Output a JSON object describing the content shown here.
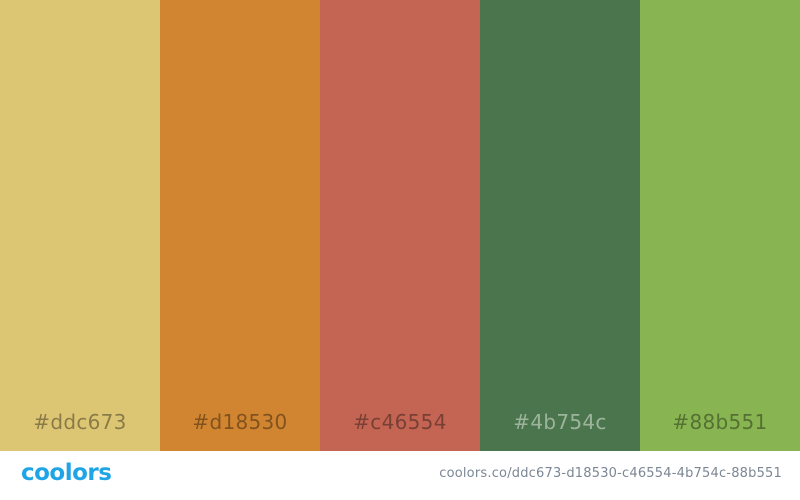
{
  "palette": {
    "swatches": [
      {
        "hex": "#ddc673",
        "label": "#ddc673",
        "tone": "light"
      },
      {
        "hex": "#d18530",
        "label": "#d18530",
        "tone": "light"
      },
      {
        "hex": "#c46554",
        "label": "#c46554",
        "tone": "light"
      },
      {
        "hex": "#4b754c",
        "label": "#4b754c",
        "tone": "dark"
      },
      {
        "hex": "#88b551",
        "label": "#88b551",
        "tone": "light"
      }
    ]
  },
  "footer": {
    "logo_text": "coolors",
    "logo_color": "#1fa5e6",
    "url": "coolors.co/ddc673-d18530-c46554-4b754c-88b551"
  }
}
